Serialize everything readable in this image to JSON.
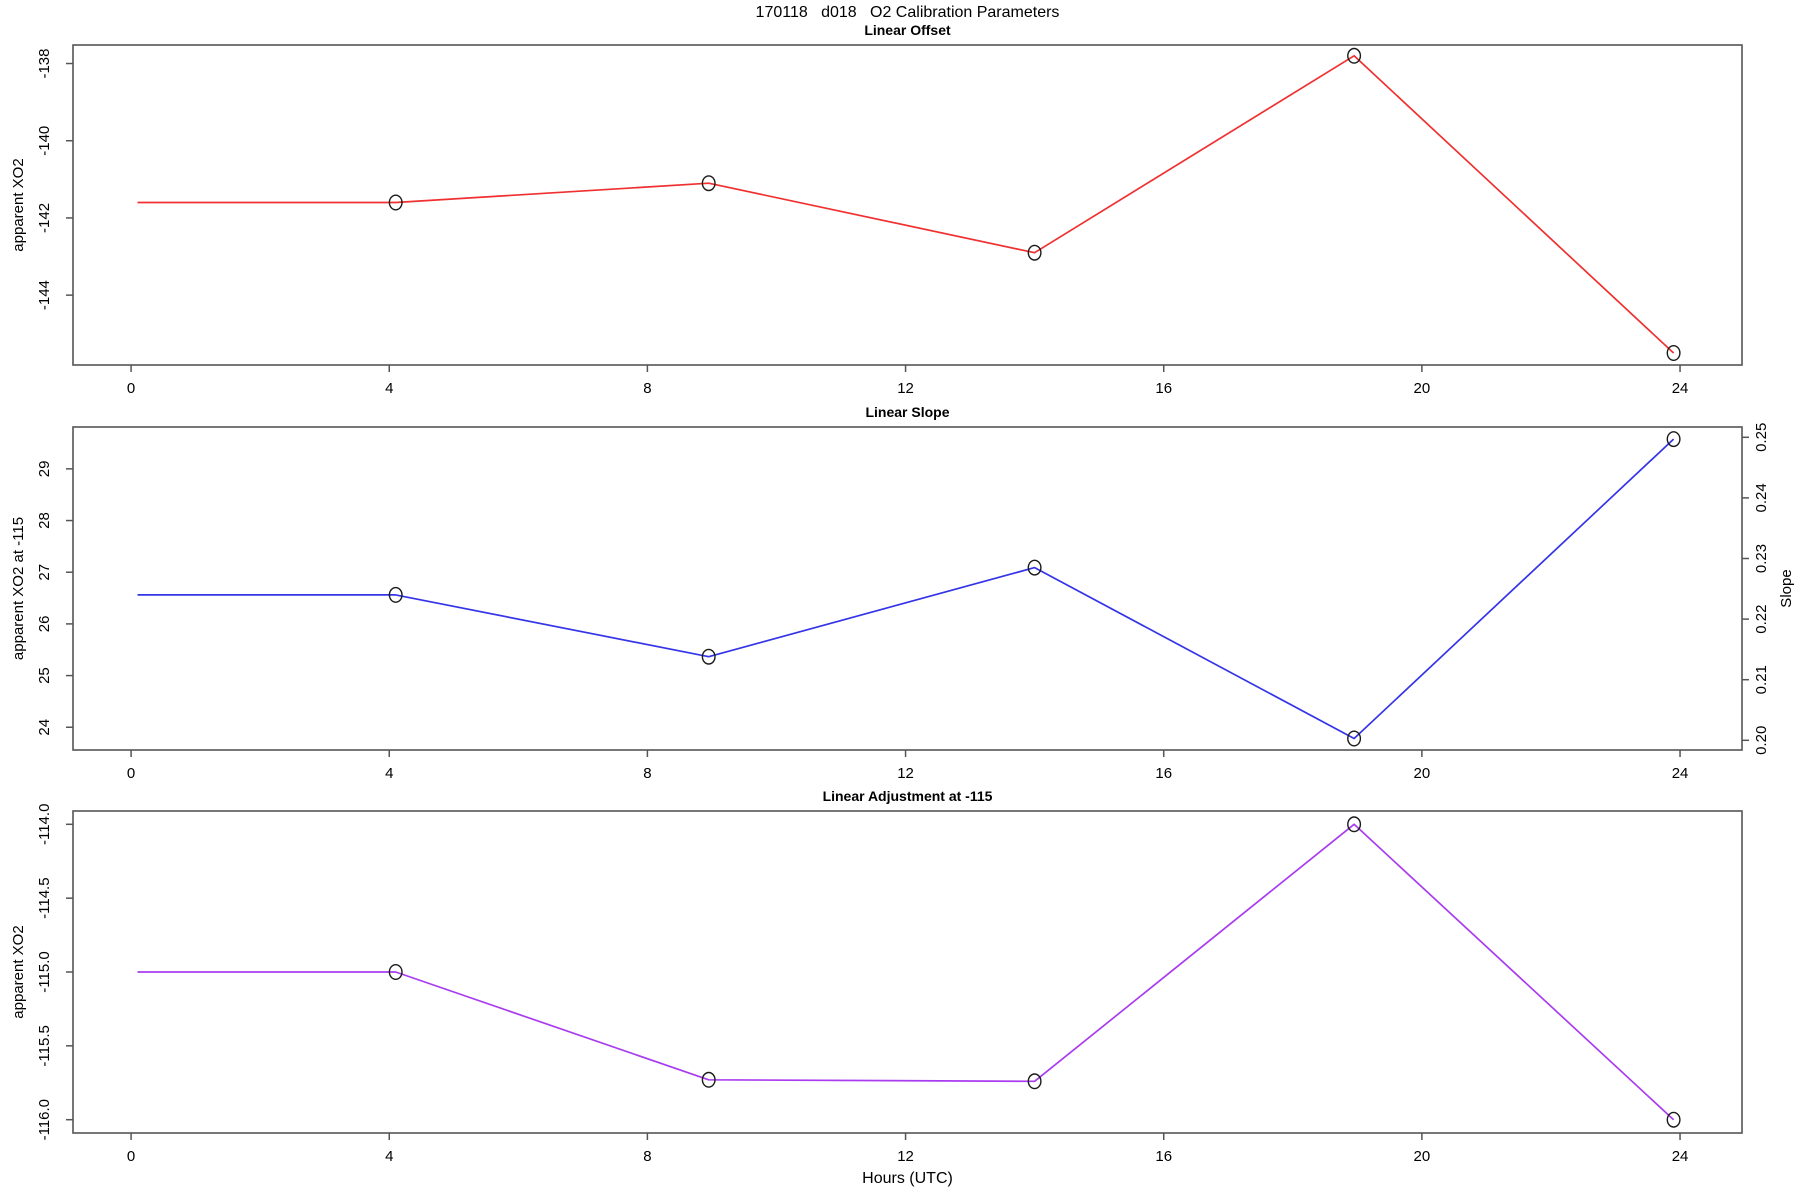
{
  "figure_title": "170118   d018   O2 Calibration Parameters",
  "xaxis_label": "Hours (UTC)",
  "background_color": "#ffffff",
  "frame_color": "#555555",
  "marker_color": "#1a1a1a",
  "chart_data": [
    {
      "type": "line",
      "title": "Linear Offset",
      "ylabel": "apparent XO2",
      "line_color": "#f03030",
      "xlim": [
        -0.9,
        24.96
      ],
      "xticks": {
        "values": [
          0,
          4,
          8,
          12,
          16,
          20,
          24
        ],
        "labels": [
          "0",
          "4",
          "8",
          "12",
          "16",
          "20",
          "24"
        ]
      },
      "series_lim": [
        -145.81,
        -137.52
      ],
      "left_axis": {
        "lim": [
          -145.81,
          -137.52
        ],
        "values": [
          -144,
          -142,
          -140,
          -138
        ],
        "labels": [
          "-144",
          "-142",
          "-140",
          "-138"
        ]
      },
      "x": [
        0.1,
        4.1,
        8.95,
        14.0,
        18.95,
        23.9
      ],
      "y": [
        -141.6,
        -141.6,
        -141.1,
        -142.9,
        -137.8,
        -145.5
      ],
      "first_point_no_marker": true,
      "legend": "none",
      "grid": "off"
    },
    {
      "type": "line",
      "title": "Linear Slope",
      "ylabel": "apparent XO2 at -115",
      "ylabel_right": "Slope",
      "line_color": "#3535e8",
      "xlim": [
        -0.9,
        24.96
      ],
      "xticks": {
        "values": [
          0,
          4,
          8,
          12,
          16,
          20,
          24
        ],
        "labels": [
          "0",
          "4",
          "8",
          "12",
          "16",
          "20",
          "24"
        ]
      },
      "series_lim": [
        0.1984,
        0.2517
      ],
      "left_axis": {
        "lim": [
          23.56,
          29.81
        ],
        "values": [
          24,
          25,
          26,
          27,
          28,
          29
        ],
        "labels": [
          "24",
          "25",
          "26",
          "27",
          "28",
          "29"
        ]
      },
      "right_axis": {
        "lim": [
          0.1984,
          0.2517
        ],
        "values": [
          0.2,
          0.21,
          0.22,
          0.23,
          0.24,
          0.25
        ],
        "labels": [
          "0.20",
          "0.21",
          "0.22",
          "0.23",
          "0.24",
          "0.25"
        ]
      },
      "x": [
        0.1,
        4.1,
        8.95,
        14.0,
        18.95,
        23.9
      ],
      "y": [
        0.224,
        0.224,
        0.2138,
        0.2285,
        0.2003,
        0.2497
      ],
      "y_left_axis_equivalent": [
        26.6,
        26.6,
        25.4,
        27.1,
        23.8,
        29.6
      ],
      "first_point_no_marker": true,
      "legend": "none",
      "grid": "off"
    },
    {
      "type": "line",
      "title": "Linear Adjustment at -115",
      "ylabel": "apparent XO2",
      "line_color": "#aa3cf0",
      "xlim": [
        -0.9,
        24.96
      ],
      "xticks": {
        "values": [
          0,
          4,
          8,
          12,
          16,
          20,
          24
        ],
        "labels": [
          "0",
          "4",
          "8",
          "12",
          "16",
          "20",
          "24"
        ]
      },
      "series_lim": [
        -116.09,
        -113.91
      ],
      "left_axis": {
        "lim": [
          -116.09,
          -113.91
        ],
        "values": [
          -116.0,
          -115.5,
          -115.0,
          -114.5,
          -114.0
        ],
        "labels": [
          "-116.0",
          "-115.5",
          "-115.0",
          "-114.5",
          "-114.0"
        ]
      },
      "x": [
        0.1,
        4.1,
        8.95,
        14.0,
        18.95,
        23.9
      ],
      "y": [
        -115.0,
        -115.0,
        -115.73,
        -115.74,
        -114.0,
        -116.0
      ],
      "first_point_no_marker": true,
      "legend": "none",
      "grid": "off"
    }
  ]
}
